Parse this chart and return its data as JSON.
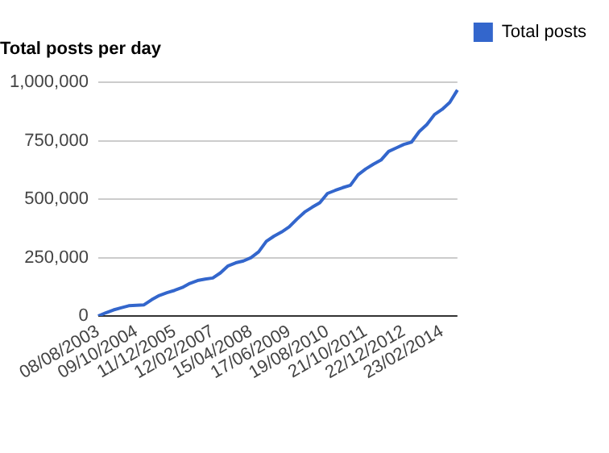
{
  "chart_data": {
    "type": "line",
    "title": "Total posts per day",
    "categories": [
      "08/08/2003",
      null,
      null,
      null,
      null,
      "09/10/2004",
      null,
      null,
      null,
      null,
      "11/12/2005",
      null,
      null,
      null,
      null,
      "12/02/2007",
      null,
      null,
      null,
      null,
      "15/04/2008",
      null,
      null,
      null,
      null,
      "17/06/2009",
      null,
      null,
      null,
      null,
      "19/08/2010",
      null,
      null,
      null,
      null,
      "21/10/2011",
      null,
      null,
      null,
      null,
      "22/12/2012",
      null,
      null,
      null,
      null,
      "23/02/2014",
      null,
      null
    ],
    "series": [
      {
        "name": "Total posts",
        "color": "#3366cc",
        "values": [
          0,
          14000,
          26000,
          35000,
          44000,
          46000,
          48000,
          70000,
          88000,
          100000,
          110000,
          122000,
          140000,
          152000,
          158000,
          163000,
          185000,
          215000,
          228000,
          236000,
          250000,
          275000,
          320000,
          342000,
          360000,
          382000,
          415000,
          445000,
          466000,
          485000,
          525000,
          538000,
          550000,
          560000,
          605000,
          630000,
          650000,
          668000,
          705000,
          720000,
          735000,
          745000,
          790000,
          820000,
          863000,
          885000,
          915000,
          968000
        ]
      }
    ],
    "ylim": [
      0,
      1000000
    ],
    "yticks": [
      0,
      {
        "value": 250000,
        "label": "250,000"
      },
      {
        "value": 500000,
        "label": "500,000"
      },
      {
        "value": 750000,
        "label": "750,000"
      },
      {
        "value": 1000000,
        "label": "1,000,000"
      }
    ],
    "grid": "y",
    "legend": "right",
    "marker": "none",
    "line_style": "solid"
  }
}
